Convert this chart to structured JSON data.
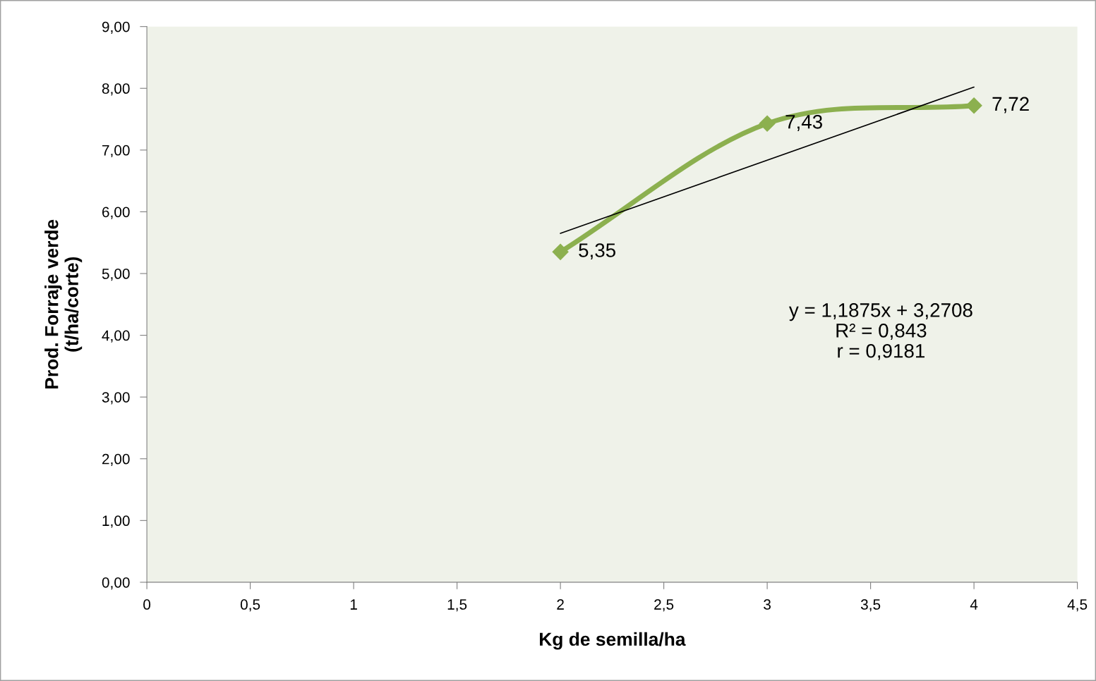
{
  "chart_data": {
    "type": "line",
    "xlabel": "Kg de semilla/ha",
    "ylabel": "Prod. Forraje verde\n(t/ha/corte)",
    "series": [
      {
        "type": "line",
        "color": "#8cb04f",
        "marker": "diamond",
        "x": [
          2,
          3,
          4
        ],
        "values": [
          5.35,
          7.43,
          7.72
        ],
        "value_labels": [
          "5,35",
          "7,43",
          "7,72"
        ]
      },
      {
        "type": "line",
        "color": "#000000",
        "marker": "none",
        "x": [
          2,
          4
        ],
        "values": [
          5.65,
          8.02
        ]
      }
    ],
    "xlim": [
      0,
      4.5
    ],
    "xticks": [
      0,
      {
        "value": 0.5,
        "label": "0,5"
      },
      1,
      {
        "value": 1.5,
        "label": "1,5"
      },
      2,
      {
        "value": 2.5,
        "label": "2,5"
      },
      3,
      {
        "value": 3.5,
        "label": "3,5"
      },
      4,
      {
        "value": 4.5,
        "label": "4,5"
      }
    ],
    "ylim": [
      0,
      9
    ],
    "yticks": [
      {
        "value": 0,
        "label": "0,00"
      },
      {
        "value": 1,
        "label": "1,00"
      },
      {
        "value": 2,
        "label": "2,00"
      },
      {
        "value": 3,
        "label": "3,00"
      },
      {
        "value": 4,
        "label": "4,00"
      },
      {
        "value": 5,
        "label": "5,00"
      },
      {
        "value": 6,
        "label": "6,00"
      },
      {
        "value": 7,
        "label": "7,00"
      },
      {
        "value": 8,
        "label": "8,00"
      },
      {
        "value": 9,
        "label": "9,00"
      }
    ],
    "annotations": [
      "y = 1,1875x + 3,2708\nR² = 0,843\nr = 0,9181"
    ],
    "grid": false,
    "legend": false,
    "line_style": "solid"
  }
}
